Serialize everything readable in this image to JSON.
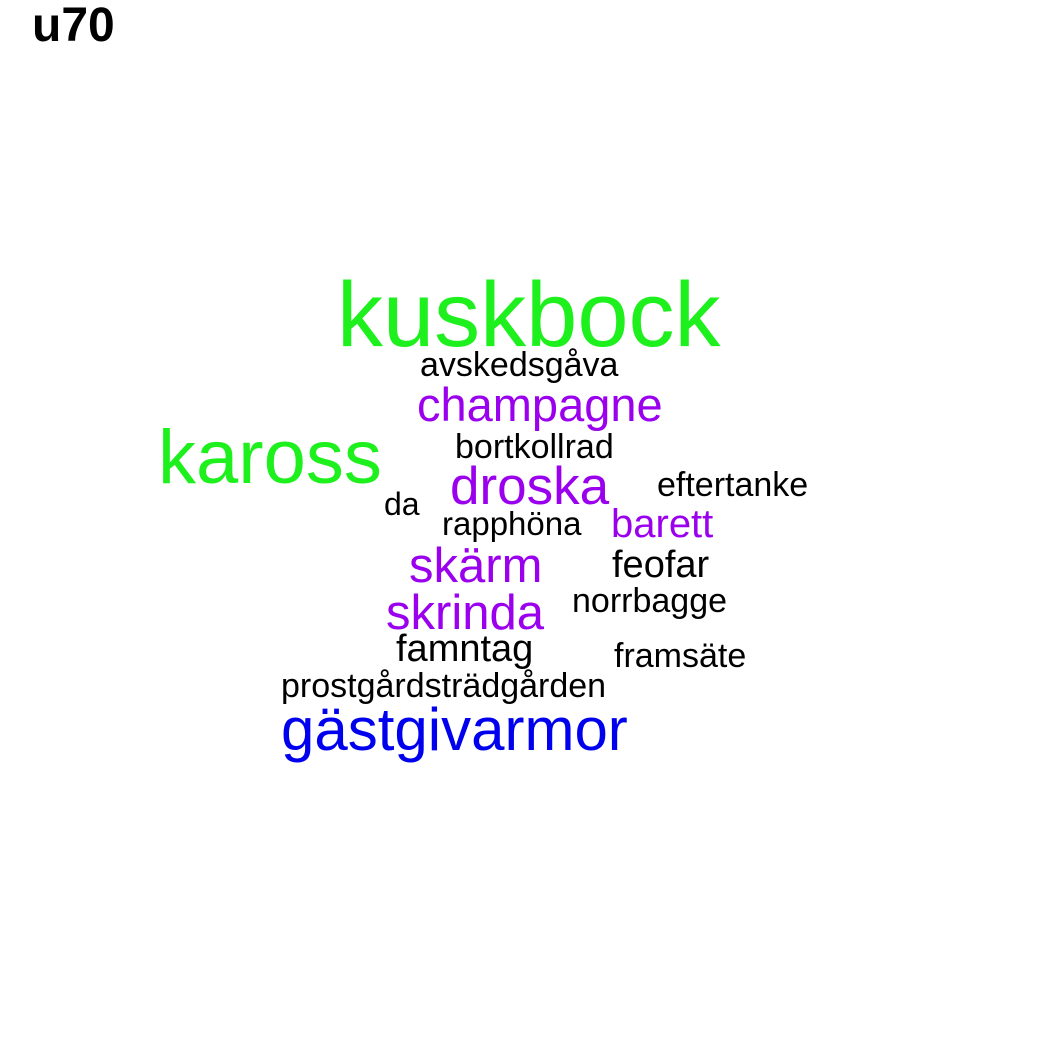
{
  "title": "u70",
  "colors": {
    "green": "#1ef01e",
    "purple": "#9a00ee",
    "blue": "#0000ee",
    "black": "#000000"
  },
  "words": [
    {
      "text": "kuskbock",
      "color": "#1ef01e"
    },
    {
      "text": "kaross",
      "color": "#1ef01e"
    },
    {
      "text": "gästgivarmor",
      "color": "#0000ee"
    },
    {
      "text": "champagne",
      "color": "#9a00ee"
    },
    {
      "text": "droska",
      "color": "#9a00ee"
    },
    {
      "text": "skärm",
      "color": "#9a00ee"
    },
    {
      "text": "skrinda",
      "color": "#9a00ee"
    },
    {
      "text": "barett",
      "color": "#9a00ee"
    },
    {
      "text": "avskedsgåva",
      "color": "#000000"
    },
    {
      "text": "bortkollrad",
      "color": "#000000"
    },
    {
      "text": "eftertanke",
      "color": "#000000"
    },
    {
      "text": "da",
      "color": "#000000"
    },
    {
      "text": "rapphöna",
      "color": "#000000"
    },
    {
      "text": "feofar",
      "color": "#000000"
    },
    {
      "text": "norrbagge",
      "color": "#000000"
    },
    {
      "text": "famntag",
      "color": "#000000"
    },
    {
      "text": "framsäte",
      "color": "#000000"
    },
    {
      "text": "prostgårdsträdgården",
      "color": "#000000"
    }
  ]
}
